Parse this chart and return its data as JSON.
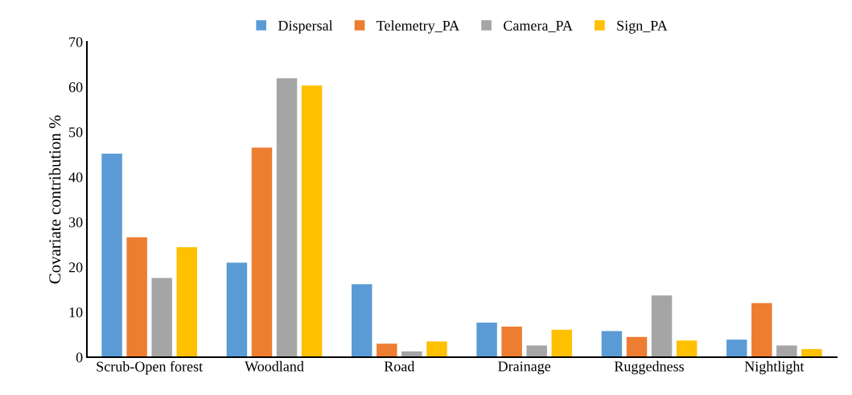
{
  "chart_data": {
    "type": "bar",
    "ylabel": "Covariate contribution %",
    "categories": [
      "Scrub-Open forest",
      "Woodland",
      "Road",
      "Drainage",
      "Ruggedness",
      "Nightlight"
    ],
    "series": [
      {
        "name": "Dispersal",
        "color": "#5b9bd5",
        "values": [
          45.2,
          21.0,
          16.2,
          7.7,
          5.8,
          3.9
        ]
      },
      {
        "name": "Telemetry_PA",
        "color": "#ed7d31",
        "values": [
          26.6,
          46.5,
          3.0,
          6.8,
          4.5,
          12.0
        ]
      },
      {
        "name": "Camera_PA",
        "color": "#a5a5a5",
        "values": [
          17.6,
          61.9,
          1.3,
          2.6,
          13.7,
          2.6
        ]
      },
      {
        "name": "Sign_PA",
        "color": "#ffc000",
        "values": [
          24.4,
          60.3,
          3.5,
          6.1,
          3.7,
          1.8
        ]
      }
    ],
    "ylim": [
      0,
      70
    ],
    "yticks": [
      0,
      10,
      20,
      30,
      40,
      50,
      60,
      70
    ],
    "grid": false,
    "legend": "top"
  }
}
